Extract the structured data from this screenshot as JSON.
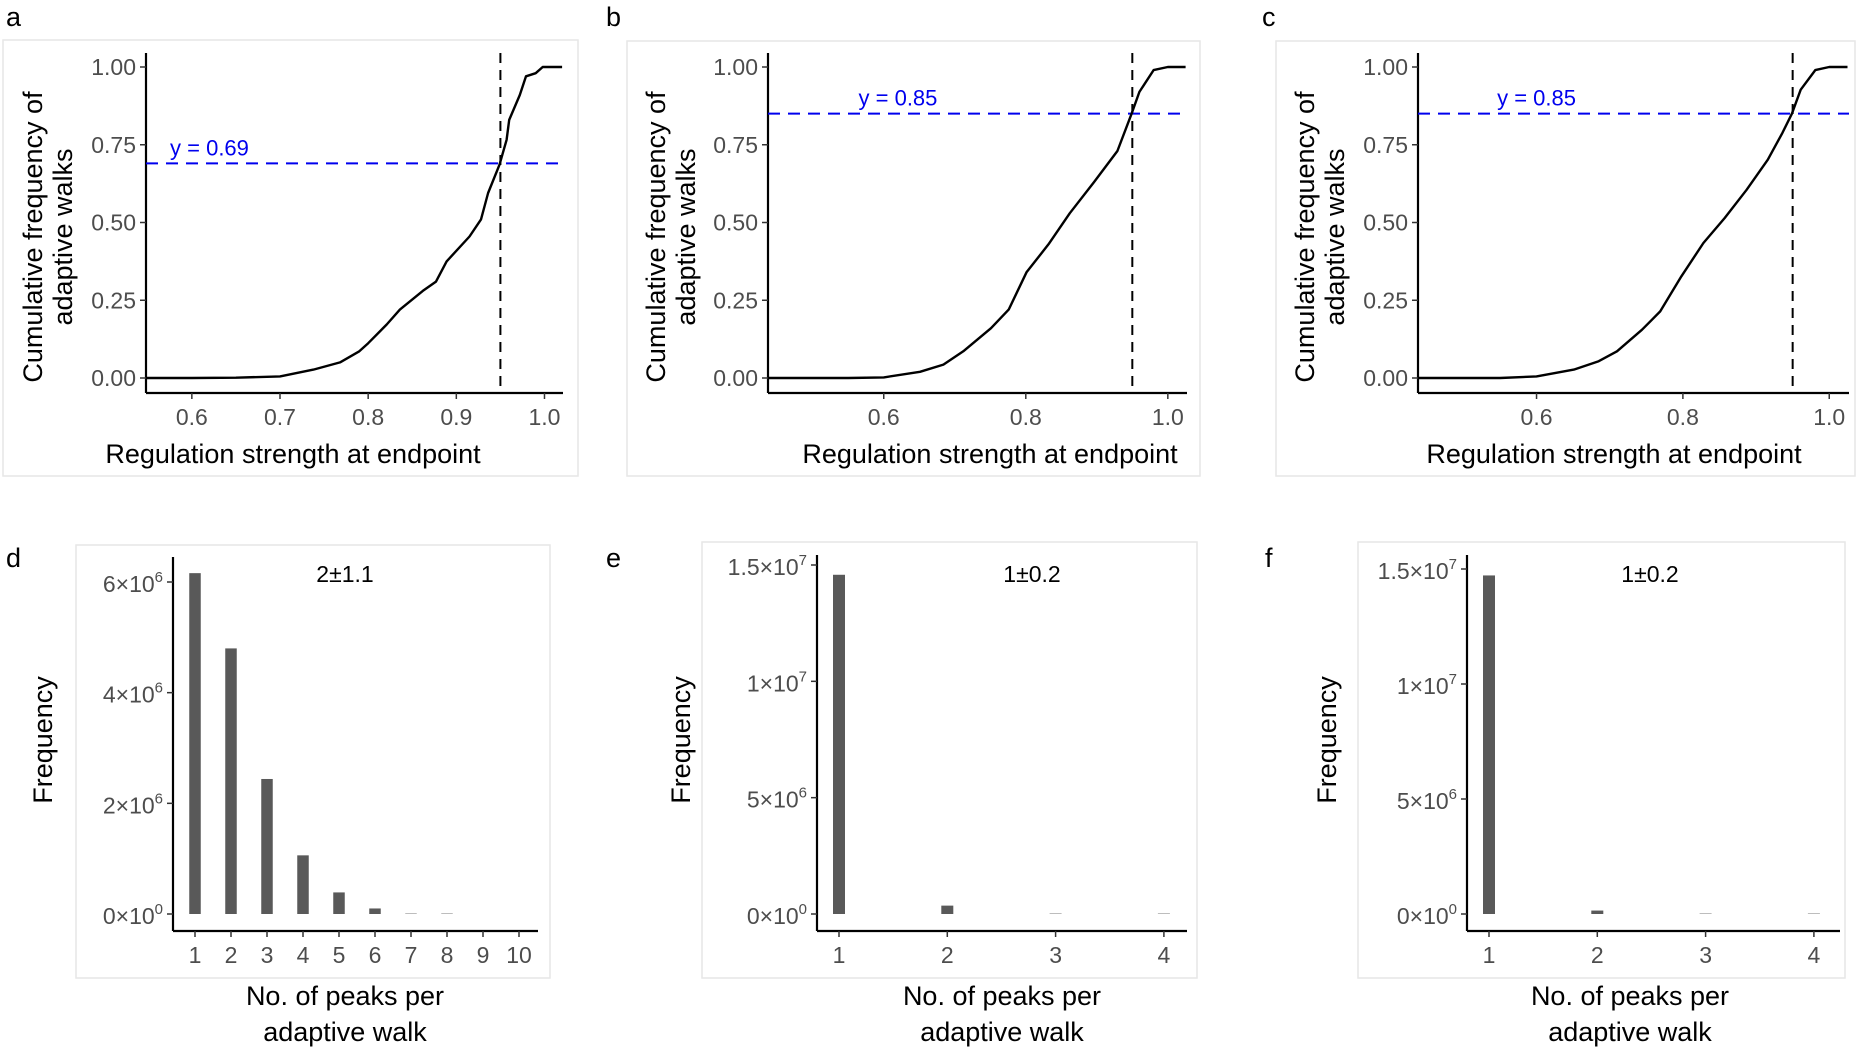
{
  "figure": {
    "panels": [
      "a",
      "b",
      "c",
      "d",
      "e",
      "f"
    ]
  },
  "chart_data": [
    {
      "panel": "a",
      "type": "line",
      "title": "",
      "xlabel": "Regulation strength at endpoint",
      "ylabel": [
        "Cumulative frequency of",
        "adaptive walks"
      ],
      "xlim": [
        0.548,
        1.021
      ],
      "ylim": [
        0,
        1
      ],
      "xticks": [
        0.6,
        0.7,
        0.8,
        0.9,
        1.0
      ],
      "xtick_labels": [
        "0.6",
        "0.7",
        "0.8",
        "0.9",
        "1.0"
      ],
      "yticks": [
        0,
        0.25,
        0.5,
        0.75,
        1.0
      ],
      "ytick_labels": [
        "0.00",
        "0.25",
        "0.50",
        "0.75",
        "1.00"
      ],
      "grid": false,
      "series": [
        {
          "name": "ECDF",
          "x": [
            0.548,
            0.6,
            0.65,
            0.7,
            0.738,
            0.768,
            0.79,
            0.8,
            0.821,
            0.836,
            0.862,
            0.877,
            0.889,
            0.915,
            0.928,
            0.936,
            0.949,
            0.957,
            0.96,
            0.972,
            0.979,
            0.99,
            0.998,
            1.02
          ],
          "y": [
            0,
            0,
            0.001,
            0.005,
            0.027,
            0.05,
            0.086,
            0.112,
            0.172,
            0.22,
            0.28,
            0.31,
            0.375,
            0.455,
            0.51,
            0.595,
            0.686,
            0.766,
            0.83,
            0.91,
            0.97,
            0.98,
            1.0,
            1.0
          ]
        }
      ],
      "vline": {
        "x": 0.95
      },
      "hline": {
        "y": 0.69,
        "label": "y = 0.69",
        "label_x": 0.62
      }
    },
    {
      "panel": "b",
      "type": "line",
      "title": "",
      "xlabel": "Regulation strength at endpoint",
      "ylabel": [
        "Cumulative frequency of",
        "adaptive walks"
      ],
      "xlim": [
        0.437,
        1.027
      ],
      "ylim": [
        0,
        1
      ],
      "xticks": [
        0.6,
        0.8,
        1.0
      ],
      "xtick_labels": [
        "0.6",
        "0.8",
        "1.0"
      ],
      "yticks": [
        0,
        0.25,
        0.5,
        0.75,
        1.0
      ],
      "ytick_labels": [
        "0.00",
        "0.25",
        "0.50",
        "0.75",
        "1.00"
      ],
      "grid": false,
      "series": [
        {
          "name": "ECDF",
          "x": [
            0.437,
            0.55,
            0.6,
            0.651,
            0.684,
            0.712,
            0.751,
            0.776,
            0.801,
            0.832,
            0.862,
            0.896,
            0.929,
            0.949,
            0.96,
            0.98,
            1.0,
            1.025
          ],
          "y": [
            0,
            0,
            0.002,
            0.02,
            0.043,
            0.086,
            0.16,
            0.22,
            0.34,
            0.43,
            0.53,
            0.63,
            0.73,
            0.85,
            0.92,
            0.99,
            1.0,
            1.0
          ]
        }
      ],
      "vline": {
        "x": 0.95
      },
      "hline": {
        "y": 0.85,
        "label": "y = 0.85",
        "label_x": 0.62
      }
    },
    {
      "panel": "c",
      "type": "line",
      "title": "",
      "xlabel": "Regulation strength at endpoint",
      "ylabel": [
        "Cumulative frequency of",
        "adaptive walks"
      ],
      "xlim": [
        0.438,
        1.027
      ],
      "ylim": [
        0,
        1
      ],
      "xticks": [
        0.6,
        0.8,
        1.0
      ],
      "xtick_labels": [
        "0.6",
        "0.8",
        "1.0"
      ],
      "yticks": [
        0,
        0.25,
        0.5,
        0.75,
        1.0
      ],
      "ytick_labels": [
        "0.00",
        "0.25",
        "0.50",
        "0.75",
        "1.00"
      ],
      "grid": false,
      "series": [
        {
          "name": "ECDF",
          "x": [
            0.438,
            0.55,
            0.6,
            0.651,
            0.685,
            0.71,
            0.744,
            0.769,
            0.798,
            0.828,
            0.857,
            0.887,
            0.916,
            0.936,
            0.949,
            0.961,
            0.981,
            1.0,
            1.025
          ],
          "y": [
            0,
            0,
            0.005,
            0.027,
            0.054,
            0.086,
            0.155,
            0.214,
            0.327,
            0.434,
            0.514,
            0.605,
            0.702,
            0.788,
            0.85,
            0.927,
            0.99,
            1.0,
            1.0
          ]
        }
      ],
      "vline": {
        "x": 0.95
      },
      "hline": {
        "y": 0.85,
        "label": "y = 0.85",
        "label_x": 0.6
      }
    },
    {
      "panel": "d",
      "type": "bar",
      "title": "",
      "annotation": "2±1.1",
      "xlabel": [
        "No. of peaks per",
        "adaptive walk"
      ],
      "ylabel": "Frequency",
      "categories": [
        "1",
        "2",
        "3",
        "4",
        "5",
        "6",
        "7",
        "8",
        "9",
        "10"
      ],
      "values": [
        6160000,
        4800000,
        2440000,
        1060000,
        390000,
        100000,
        12000,
        3000,
        0,
        0
      ],
      "ylim": [
        0,
        6600000
      ],
      "yticks": [
        0,
        2000000,
        4000000,
        6000000
      ],
      "ytick_labels": [
        [
          "0",
          "0"
        ],
        [
          "2",
          "6"
        ],
        [
          "4",
          "6"
        ],
        [
          "6",
          "6"
        ]
      ],
      "grid": false
    },
    {
      "panel": "e",
      "type": "bar",
      "title": "",
      "annotation": "1±0.2",
      "xlabel": [
        "No. of peaks per",
        "adaptive walk"
      ],
      "ylabel": "Frequency",
      "categories": [
        "1",
        "2",
        "3",
        "4"
      ],
      "values": [
        14580000,
        360000,
        8000,
        1000
      ],
      "ylim": [
        0,
        15400000
      ],
      "yticks": [
        0,
        5000000,
        10000000,
        15000000
      ],
      "ytick_labels": [
        [
          "0",
          "0"
        ],
        [
          "5",
          "6"
        ],
        [
          "1",
          "7"
        ],
        [
          "1.5",
          "7"
        ]
      ],
      "grid": false
    },
    {
      "panel": "f",
      "type": "bar",
      "title": "",
      "annotation": "1±0.2",
      "xlabel": [
        "No. of peaks per",
        "adaptive walk"
      ],
      "ylabel": "Frequency",
      "categories": [
        "1",
        "2",
        "3",
        "4"
      ],
      "values": [
        14720000,
        150000,
        8000,
        1000
      ],
      "ylim": [
        0,
        15400000
      ],
      "yticks": [
        0,
        5000000,
        10000000,
        15000000
      ],
      "ytick_labels": [
        [
          "0",
          "0"
        ],
        [
          "5",
          "6"
        ],
        [
          "1",
          "7"
        ],
        [
          "1.5",
          "7"
        ]
      ],
      "grid": false
    }
  ]
}
